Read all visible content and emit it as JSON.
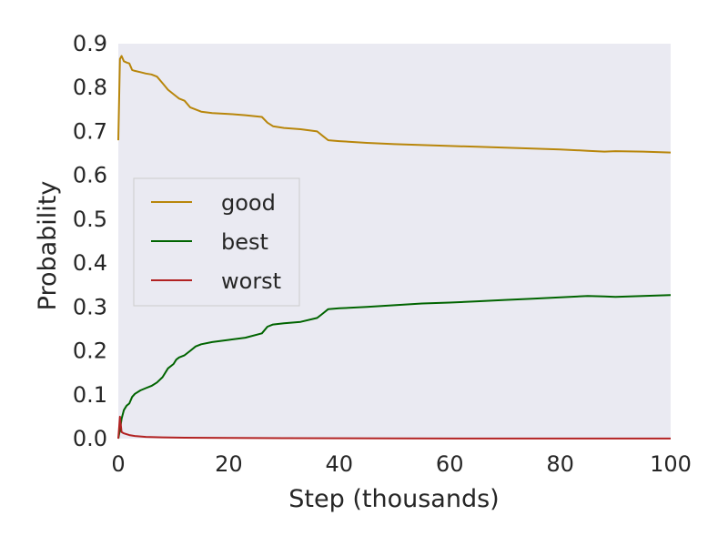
{
  "colors": {
    "background": "#eaeaf2",
    "good": "#b8860b",
    "best": "#006400",
    "worst": "#b22222",
    "legend_border": "#cccccc"
  },
  "chart_data": {
    "type": "line",
    "title": "",
    "xlabel": "Step (thousands)",
    "ylabel": "Probability",
    "xlim": [
      0,
      100
    ],
    "ylim": [
      0,
      0.9
    ],
    "xticks": [
      "0",
      "20",
      "40",
      "60",
      "80",
      "100"
    ],
    "yticks": [
      "0.0",
      "0.1",
      "0.2",
      "0.3",
      "0.4",
      "0.5",
      "0.6",
      "0.7",
      "0.8",
      "0.9"
    ],
    "grid": false,
    "legend": "center-left",
    "series": [
      {
        "name": "good",
        "color": "#b8860b",
        "x": [
          0,
          0.3,
          0.6,
          1,
          1.5,
          2,
          2.5,
          3,
          4,
          5,
          6,
          7,
          8,
          9,
          10,
          10.5,
          11,
          12,
          13,
          14,
          15,
          17,
          20,
          23,
          26,
          27,
          28,
          30,
          33,
          36,
          37,
          38,
          40,
          45,
          50,
          55,
          60,
          65,
          70,
          75,
          80,
          85,
          88,
          90,
          95,
          100
        ],
        "y": [
          0.68,
          0.865,
          0.872,
          0.86,
          0.857,
          0.855,
          0.84,
          0.838,
          0.835,
          0.832,
          0.83,
          0.825,
          0.81,
          0.795,
          0.785,
          0.78,
          0.775,
          0.77,
          0.755,
          0.75,
          0.745,
          0.742,
          0.74,
          0.737,
          0.733,
          0.72,
          0.712,
          0.708,
          0.705,
          0.7,
          0.69,
          0.68,
          0.678,
          0.674,
          0.671,
          0.669,
          0.667,
          0.665,
          0.663,
          0.661,
          0.659,
          0.656,
          0.654,
          0.655,
          0.654,
          0.652
        ]
      },
      {
        "name": "best",
        "color": "#006400",
        "x": [
          0,
          0.3,
          0.6,
          1,
          1.5,
          2,
          2.5,
          3,
          4,
          5,
          6,
          7,
          8,
          9,
          10,
          10.5,
          11,
          12,
          13,
          14,
          15,
          17,
          20,
          23,
          26,
          27,
          28,
          30,
          33,
          36,
          37,
          38,
          40,
          45,
          50,
          55,
          60,
          65,
          70,
          75,
          80,
          85,
          88,
          90,
          95,
          100
        ],
        "y": [
          0.0,
          0.02,
          0.045,
          0.065,
          0.075,
          0.08,
          0.095,
          0.102,
          0.11,
          0.115,
          0.12,
          0.128,
          0.14,
          0.16,
          0.17,
          0.18,
          0.185,
          0.19,
          0.2,
          0.21,
          0.215,
          0.22,
          0.225,
          0.23,
          0.24,
          0.255,
          0.26,
          0.263,
          0.266,
          0.275,
          0.285,
          0.295,
          0.297,
          0.3,
          0.304,
          0.308,
          0.31,
          0.313,
          0.316,
          0.319,
          0.322,
          0.325,
          0.324,
          0.323,
          0.325,
          0.327
        ]
      },
      {
        "name": "worst",
        "color": "#b22222",
        "x": [
          0,
          0.3,
          0.6,
          1,
          2,
          3,
          5,
          8,
          12,
          20,
          30,
          50,
          70,
          100
        ],
        "y": [
          0.0,
          0.05,
          0.015,
          0.012,
          0.008,
          0.006,
          0.004,
          0.003,
          0.002,
          0.0015,
          0.001,
          0.0005,
          0.0003,
          0.0002
        ]
      }
    ]
  }
}
